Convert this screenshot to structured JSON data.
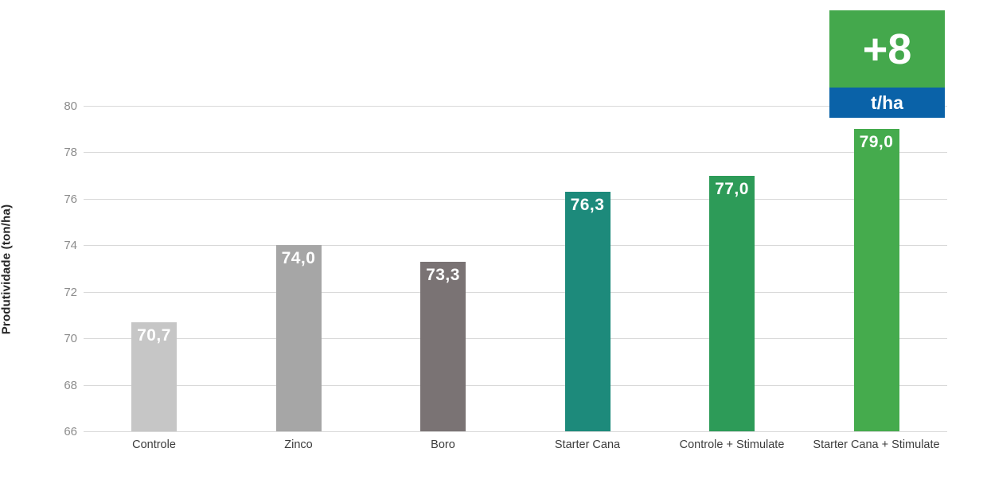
{
  "chart_data": {
    "type": "bar",
    "title": "",
    "xlabel": "",
    "ylabel": "Produtividade (ton/ha)",
    "categories": [
      "Controle",
      "Zinco",
      "Boro",
      "Starter Cana",
      "Controle + Stimulate",
      "Starter Cana + Stimulate"
    ],
    "values": [
      70.7,
      74.0,
      73.3,
      76.3,
      77.0,
      79.0
    ],
    "value_labels": [
      "70,7",
      "74,0",
      "73,3",
      "76,3",
      "77,0",
      "79,0"
    ],
    "bar_colors": [
      "#c6c6c6",
      "#a6a6a6",
      "#7a7374",
      "#1d8a7b",
      "#2d9b58",
      "#45ab4d"
    ],
    "yticks": [
      66,
      68,
      70,
      72,
      74,
      76,
      78,
      80
    ],
    "ylim": [
      66,
      80
    ],
    "grid": "horizontal",
    "gridline_color": "#d9d9d9",
    "legend_position": "none"
  },
  "badge": {
    "value": "+8",
    "unit": "t/ha",
    "value_bg_color": "#44a84c",
    "unit_bg_color": "#0a62a8",
    "text_color": "#ffffff"
  }
}
